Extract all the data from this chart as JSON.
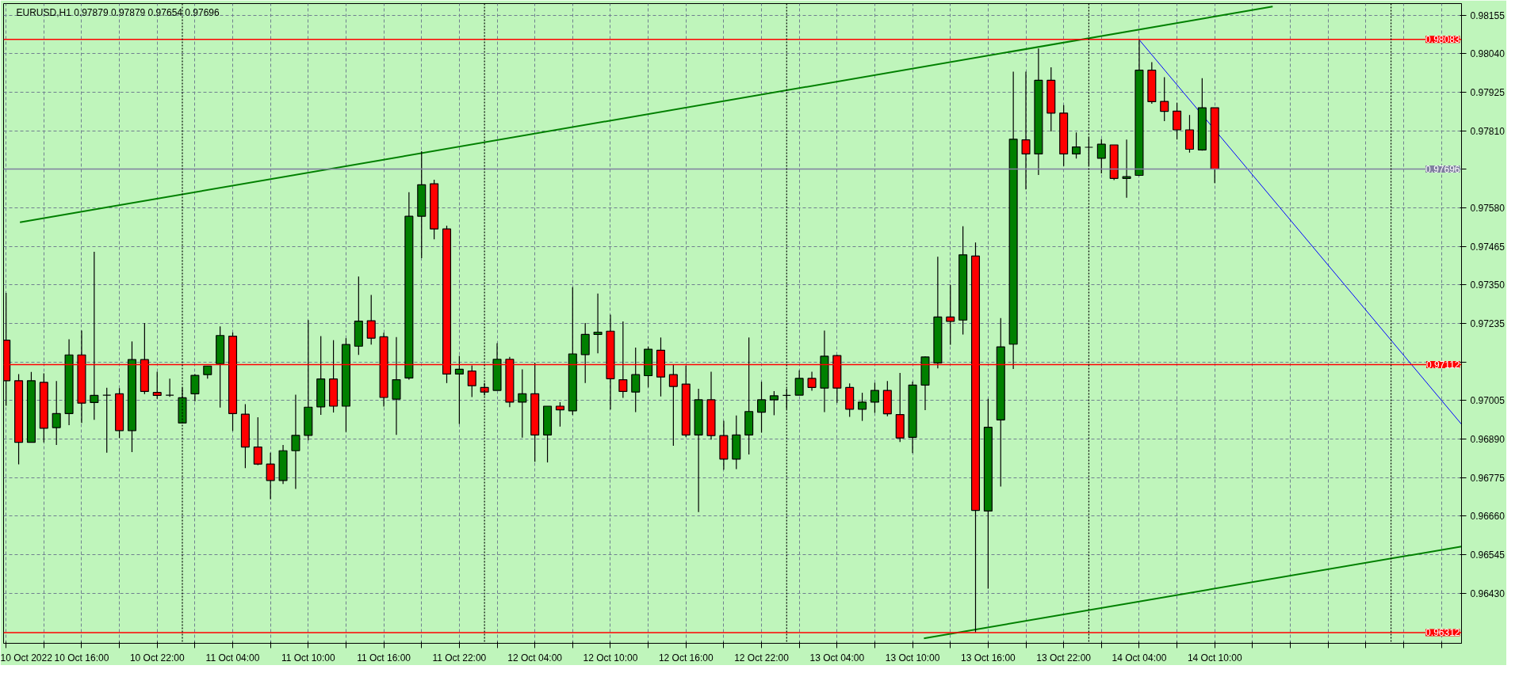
{
  "chart_data": {
    "type": "candlestick",
    "title": "EURUSD,H1  0.97879 0.97879 0.97654 0.97696",
    "x": [
      "2022-10-10T10:00",
      "2022-10-10T11:00",
      "2022-10-10T12:00",
      "2022-10-10T13:00",
      "2022-10-10T14:00",
      "2022-10-10T15:00",
      "2022-10-10T16:00",
      "2022-10-10T17:00",
      "2022-10-10T18:00",
      "2022-10-10T19:00",
      "2022-10-10T20:00",
      "2022-10-10T21:00",
      "2022-10-10T22:00",
      "2022-10-10T23:00",
      "2022-10-11T00:00",
      "2022-10-11T01:00",
      "2022-10-11T02:00",
      "2022-10-11T03:00",
      "2022-10-11T04:00",
      "2022-10-11T05:00",
      "2022-10-11T06:00",
      "2022-10-11T07:00",
      "2022-10-11T08:00",
      "2022-10-11T09:00",
      "2022-10-11T10:00",
      "2022-10-11T11:00",
      "2022-10-11T12:00",
      "2022-10-11T13:00",
      "2022-10-11T14:00",
      "2022-10-11T15:00",
      "2022-10-11T16:00",
      "2022-10-11T17:00",
      "2022-10-11T18:00",
      "2022-10-11T19:00",
      "2022-10-11T20:00",
      "2022-10-11T21:00",
      "2022-10-11T22:00",
      "2022-10-11T23:00",
      "2022-10-12T00:00",
      "2022-10-12T01:00",
      "2022-10-12T02:00",
      "2022-10-12T03:00",
      "2022-10-12T04:00",
      "2022-10-12T05:00",
      "2022-10-12T06:00",
      "2022-10-12T07:00",
      "2022-10-12T08:00",
      "2022-10-12T09:00",
      "2022-10-12T10:00",
      "2022-10-12T11:00",
      "2022-10-12T12:00",
      "2022-10-12T13:00",
      "2022-10-12T14:00",
      "2022-10-12T15:00",
      "2022-10-12T16:00",
      "2022-10-12T17:00",
      "2022-10-12T18:00",
      "2022-10-12T19:00",
      "2022-10-12T20:00",
      "2022-10-12T21:00",
      "2022-10-12T22:00",
      "2022-10-12T23:00",
      "2022-10-13T00:00",
      "2022-10-13T01:00",
      "2022-10-13T02:00",
      "2022-10-13T03:00",
      "2022-10-13T04:00",
      "2022-10-13T05:00",
      "2022-10-13T06:00",
      "2022-10-13T07:00",
      "2022-10-13T08:00",
      "2022-10-13T09:00",
      "2022-10-13T10:00",
      "2022-10-13T11:00",
      "2022-10-13T12:00",
      "2022-10-13T13:00",
      "2022-10-13T14:00",
      "2022-10-13T15:00",
      "2022-10-13T16:00",
      "2022-10-13T17:00",
      "2022-10-13T18:00",
      "2022-10-13T19:00",
      "2022-10-13T20:00",
      "2022-10-13T21:00",
      "2022-10-13T22:00",
      "2022-10-13T23:00",
      "2022-10-14T00:00",
      "2022-10-14T01:00",
      "2022-10-14T02:00",
      "2022-10-14T03:00",
      "2022-10-14T04:00",
      "2022-10-14T05:00",
      "2022-10-14T06:00",
      "2022-10-14T07:00",
      "2022-10-14T08:00",
      "2022-10-14T09:00",
      "2022-10-14T10:00"
    ],
    "ohlc": [
      [
        0.97185,
        0.97326,
        0.96989,
        0.97064
      ],
      [
        0.97064,
        0.97084,
        0.96814,
        0.9688
      ],
      [
        0.9688,
        0.9709,
        0.9688,
        0.97064
      ],
      [
        0.97059,
        0.97086,
        0.9688,
        0.96922
      ],
      [
        0.96924,
        0.97063,
        0.96872,
        0.96966
      ],
      [
        0.96966,
        0.97188,
        0.96931,
        0.97141
      ],
      [
        0.97141,
        0.97214,
        0.96938,
        0.96997
      ],
      [
        0.96999,
        0.97449,
        0.96947,
        0.9702
      ],
      [
        0.97021,
        0.97043,
        0.96849,
        0.97021
      ],
      [
        0.97025,
        0.97042,
        0.96893,
        0.96915
      ],
      [
        0.96915,
        0.97181,
        0.96851,
        0.97127
      ],
      [
        0.97127,
        0.97236,
        0.97024,
        0.97032
      ],
      [
        0.97029,
        0.97091,
        0.9701,
        0.9702
      ],
      [
        0.97021,
        0.9707,
        0.97016,
        0.97021
      ],
      [
        0.96938,
        0.97043,
        0.96938,
        0.97013
      ],
      [
        0.97025,
        0.97084,
        0.97003,
        0.9708
      ],
      [
        0.97082,
        0.97108,
        0.9707,
        0.97108
      ],
      [
        0.97115,
        0.97226,
        0.96984,
        0.97199
      ],
      [
        0.97197,
        0.97208,
        0.96914,
        0.96966
      ],
      [
        0.96964,
        0.96994,
        0.96803,
        0.96866
      ],
      [
        0.96866,
        0.96955,
        0.96812,
        0.96815
      ],
      [
        0.96815,
        0.96849,
        0.9671,
        0.96766
      ],
      [
        0.96766,
        0.96872,
        0.96756,
        0.96855
      ],
      [
        0.96855,
        0.97022,
        0.96741,
        0.96901
      ],
      [
        0.96901,
        0.97245,
        0.96886,
        0.96985
      ],
      [
        0.96986,
        0.97197,
        0.96962,
        0.97069
      ],
      [
        0.97069,
        0.97185,
        0.96969,
        0.96988
      ],
      [
        0.96988,
        0.97191,
        0.96911,
        0.97172
      ],
      [
        0.97167,
        0.97375,
        0.97141,
        0.97242
      ],
      [
        0.97243,
        0.9732,
        0.97172,
        0.97191
      ],
      [
        0.97195,
        0.97207,
        0.96987,
        0.97014
      ],
      [
        0.97009,
        0.97194,
        0.96902,
        0.97067
      ],
      [
        0.97072,
        0.97627,
        0.97067,
        0.97555
      ],
      [
        0.97555,
        0.97749,
        0.9743,
        0.97649
      ],
      [
        0.97652,
        0.97664,
        0.97486,
        0.97517
      ],
      [
        0.97517,
        0.97527,
        0.97057,
        0.97084
      ],
      [
        0.97084,
        0.97138,
        0.96935,
        0.97098
      ],
      [
        0.97093,
        0.9711,
        0.97015,
        0.97049
      ],
      [
        0.97044,
        0.97057,
        0.9702,
        0.9703
      ],
      [
        0.97035,
        0.97176,
        0.97035,
        0.97128
      ],
      [
        0.97128,
        0.97135,
        0.96985,
        0.97
      ],
      [
        0.97,
        0.97098,
        0.96894,
        0.97025
      ],
      [
        0.97025,
        0.97118,
        0.96822,
        0.96902
      ],
      [
        0.96902,
        0.96988,
        0.9682,
        0.96988
      ],
      [
        0.96988,
        0.97,
        0.96927,
        0.96977
      ],
      [
        0.96974,
        0.97343,
        0.96962,
        0.97144
      ],
      [
        0.97142,
        0.97236,
        0.97057,
        0.97202
      ],
      [
        0.97202,
        0.97324,
        0.97146,
        0.97209
      ],
      [
        0.97212,
        0.97261,
        0.96978,
        0.9707
      ],
      [
        0.97067,
        0.97241,
        0.97013,
        0.97032
      ],
      [
        0.9703,
        0.97163,
        0.9697,
        0.97082
      ],
      [
        0.97079,
        0.97166,
        0.97044,
        0.97158
      ],
      [
        0.97155,
        0.97193,
        0.97017,
        0.97075
      ],
      [
        0.97082,
        0.97112,
        0.9687,
        0.97047
      ],
      [
        0.97054,
        0.97109,
        0.96896,
        0.96902
      ],
      [
        0.96902,
        0.9704,
        0.96672,
        0.97007
      ],
      [
        0.97007,
        0.97091,
        0.96888,
        0.969
      ],
      [
        0.969,
        0.96944,
        0.96798,
        0.9683
      ],
      [
        0.9683,
        0.9696,
        0.968,
        0.96902
      ],
      [
        0.96902,
        0.97193,
        0.96844,
        0.96972
      ],
      [
        0.9697,
        0.97061,
        0.96909,
        0.97007
      ],
      [
        0.97007,
        0.97033,
        0.96961,
        0.97019
      ],
      [
        0.9702,
        0.9704,
        0.96979,
        0.9702
      ],
      [
        0.97021,
        0.97095,
        0.97021,
        0.97071
      ],
      [
        0.97071,
        0.97091,
        0.97034,
        0.97044
      ],
      [
        0.97042,
        0.97214,
        0.9697,
        0.97137
      ],
      [
        0.97139,
        0.97141,
        0.96998,
        0.97042
      ],
      [
        0.97044,
        0.97056,
        0.96956,
        0.96979
      ],
      [
        0.96979,
        0.97028,
        0.96944,
        0.97
      ],
      [
        0.97,
        0.97058,
        0.96968,
        0.97035
      ],
      [
        0.97035,
        0.97063,
        0.96958,
        0.96965
      ],
      [
        0.96963,
        0.97087,
        0.96881,
        0.96893
      ],
      [
        0.96895,
        0.97061,
        0.96848,
        0.97051
      ],
      [
        0.97051,
        0.97137,
        0.96976,
        0.97135
      ],
      [
        0.97117,
        0.97434,
        0.97101,
        0.97254
      ],
      [
        0.97254,
        0.97351,
        0.97171,
        0.97241
      ],
      [
        0.97245,
        0.97525,
        0.97202,
        0.9744
      ],
      [
        0.97436,
        0.97477,
        0.96312,
        0.96677
      ],
      [
        0.96675,
        0.9701,
        0.96443,
        0.96925
      ],
      [
        0.96947,
        0.97251,
        0.96748,
        0.97165
      ],
      [
        0.97173,
        0.97987,
        0.97099,
        0.97785
      ],
      [
        0.97783,
        0.97987,
        0.97635,
        0.97741
      ],
      [
        0.97741,
        0.98056,
        0.97678,
        0.97961
      ],
      [
        0.97961,
        0.98,
        0.97808,
        0.97863
      ],
      [
        0.97863,
        0.97887,
        0.97705,
        0.97741
      ],
      [
        0.97741,
        0.97805,
        0.97727,
        0.97762
      ],
      [
        0.97761,
        0.97792,
        0.97705,
        0.97761
      ],
      [
        0.97728,
        0.97785,
        0.97683,
        0.9777
      ],
      [
        0.97768,
        0.97768,
        0.97663,
        0.97668
      ],
      [
        0.97668,
        0.97784,
        0.9761,
        0.97673
      ],
      [
        0.97677,
        0.98083,
        0.97675,
        0.97991
      ],
      [
        0.97991,
        0.98015,
        0.97891,
        0.97897
      ],
      [
        0.97898,
        0.9797,
        0.97839,
        0.97868
      ],
      [
        0.97869,
        0.97894,
        0.97784,
        0.97813
      ],
      [
        0.97813,
        0.97857,
        0.97745,
        0.97755
      ],
      [
        0.97753,
        0.97967,
        0.97751,
        0.97879
      ],
      [
        0.97879,
        0.97879,
        0.97654,
        0.97696
      ]
    ],
    "series": [
      {
        "type": "line",
        "color": "#008000",
        "x": [
          "2022-10-10T11:06",
          "2022-10-14T14:36"
        ],
        "values": [
          0.97537,
          0.98181
        ]
      },
      {
        "type": "line",
        "color": "#008000",
        "x": [
          "2022-10-13T10:54",
          "2022-10-15T05:36"
        ],
        "values": [
          0.96295,
          0.96569
        ]
      },
      {
        "type": "line",
        "color": "#0000ff",
        "x": [
          "2022-10-14T04:00",
          "2022-10-15T05:36"
        ],
        "values": [
          0.98082,
          0.96934
        ]
      }
    ],
    "xlim": [
      "2022-10-10T09:48",
      "2022-10-15T05:36"
    ],
    "ylim": [
      0.9628,
      0.9819
    ],
    "xticks": [
      {
        "value": "2022-10-10T10:00",
        "label": "10 Oct 2022"
      },
      {
        "value": "2022-10-10T13:00",
        "label": null
      },
      {
        "value": "2022-10-10T16:00",
        "label": "10 Oct 16:00"
      },
      {
        "value": "2022-10-10T19:00",
        "label": null
      },
      {
        "value": "2022-10-10T22:00",
        "label": "10 Oct 22:00"
      },
      {
        "value": "2022-10-11T01:00",
        "label": null
      },
      {
        "value": "2022-10-11T04:00",
        "label": "11 Oct 04:00"
      },
      {
        "value": "2022-10-11T07:00",
        "label": null
      },
      {
        "value": "2022-10-11T10:00",
        "label": "11 Oct 10:00"
      },
      {
        "value": "2022-10-11T13:00",
        "label": null
      },
      {
        "value": "2022-10-11T16:00",
        "label": "11 Oct 16:00"
      },
      {
        "value": "2022-10-11T19:00",
        "label": null
      },
      {
        "value": "2022-10-11T22:00",
        "label": "11 Oct 22:00"
      },
      {
        "value": "2022-10-12T01:00",
        "label": null
      },
      {
        "value": "2022-10-12T04:00",
        "label": "12 Oct 04:00"
      },
      {
        "value": "2022-10-12T07:00",
        "label": null
      },
      {
        "value": "2022-10-12T10:00",
        "label": "12 Oct 10:00"
      },
      {
        "value": "2022-10-12T13:00",
        "label": null
      },
      {
        "value": "2022-10-12T16:00",
        "label": "12 Oct 16:00"
      },
      {
        "value": "2022-10-12T19:00",
        "label": null
      },
      {
        "value": "2022-10-12T22:00",
        "label": "12 Oct 22:00"
      },
      {
        "value": "2022-10-13T01:00",
        "label": null
      },
      {
        "value": "2022-10-13T04:00",
        "label": "13 Oct 04:00"
      },
      {
        "value": "2022-10-13T07:00",
        "label": null
      },
      {
        "value": "2022-10-13T10:00",
        "label": "13 Oct 10:00"
      },
      {
        "value": "2022-10-13T13:00",
        "label": null
      },
      {
        "value": "2022-10-13T16:00",
        "label": "13 Oct 16:00"
      },
      {
        "value": "2022-10-13T19:00",
        "label": null
      },
      {
        "value": "2022-10-13T22:00",
        "label": "13 Oct 22:00"
      },
      {
        "value": "2022-10-14T01:00",
        "label": null
      },
      {
        "value": "2022-10-14T04:00",
        "label": "14 Oct 04:00"
      },
      {
        "value": "2022-10-14T07:00",
        "label": null
      },
      {
        "value": "2022-10-14T10:00",
        "label": "14 Oct 10:00"
      },
      {
        "value": "2022-10-14T13:00",
        "label": null
      },
      {
        "value": "2022-10-14T16:00",
        "label": null
      },
      {
        "value": "2022-10-14T19:00",
        "label": null
      },
      {
        "value": "2022-10-14T22:00",
        "label": null
      },
      {
        "value": "2022-10-15T01:00",
        "label": null
      },
      {
        "value": "2022-10-15T04:00",
        "label": null
      }
    ],
    "yticks": [
      {
        "value": 0.98155,
        "label": "0.98155"
      },
      {
        "value": 0.9804,
        "label": "0.98040"
      },
      {
        "value": 0.97925,
        "label": "0.97925"
      },
      {
        "value": 0.9781,
        "label": "0.97810"
      },
      {
        "value": 0.97695,
        "label": null
      },
      {
        "value": 0.9758,
        "label": "0.97580"
      },
      {
        "value": 0.97465,
        "label": "0.97465"
      },
      {
        "value": 0.9735,
        "label": "0.97350"
      },
      {
        "value": 0.97235,
        "label": "0.97235"
      },
      {
        "value": 0.9712,
        "label": null
      },
      {
        "value": 0.97005,
        "label": "0.97005"
      },
      {
        "value": 0.9689,
        "label": "0.96890"
      },
      {
        "value": 0.96775,
        "label": "0.96775"
      },
      {
        "value": 0.9666,
        "label": "0.96660"
      },
      {
        "value": 0.96545,
        "label": "0.96545"
      },
      {
        "value": 0.9643,
        "label": "0.96430"
      }
    ],
    "grid": true,
    "ref_lines": [
      {
        "axis": "y",
        "value": 0.98083,
        "label": "0.98083",
        "color": "#ff0000",
        "line_style": "solid"
      },
      {
        "axis": "y",
        "value": 0.97112,
        "label": "0.97112",
        "color": "#ff0000",
        "line_style": "solid"
      },
      {
        "axis": "y",
        "value": 0.96312,
        "label": "0.96312",
        "color": "#ff0000",
        "line_style": "solid"
      },
      {
        "axis": "y",
        "value": 0.97696,
        "label": "0.97696",
        "color": "#7f7f9f",
        "line_style": "solid"
      },
      {
        "axis": "x",
        "value": "2022-10-11",
        "color": "#000000",
        "line_style": "dotted"
      },
      {
        "axis": "x",
        "value": "2022-10-12",
        "color": "#000000",
        "line_style": "dotted"
      },
      {
        "axis": "x",
        "value": "2022-10-13",
        "color": "#000000",
        "line_style": "dotted"
      },
      {
        "axis": "x",
        "value": "2022-10-14",
        "color": "#000000",
        "line_style": "dotted"
      },
      {
        "axis": "x",
        "value": "2022-10-15",
        "color": "#000000",
        "line_style": "dotted"
      }
    ]
  }
}
